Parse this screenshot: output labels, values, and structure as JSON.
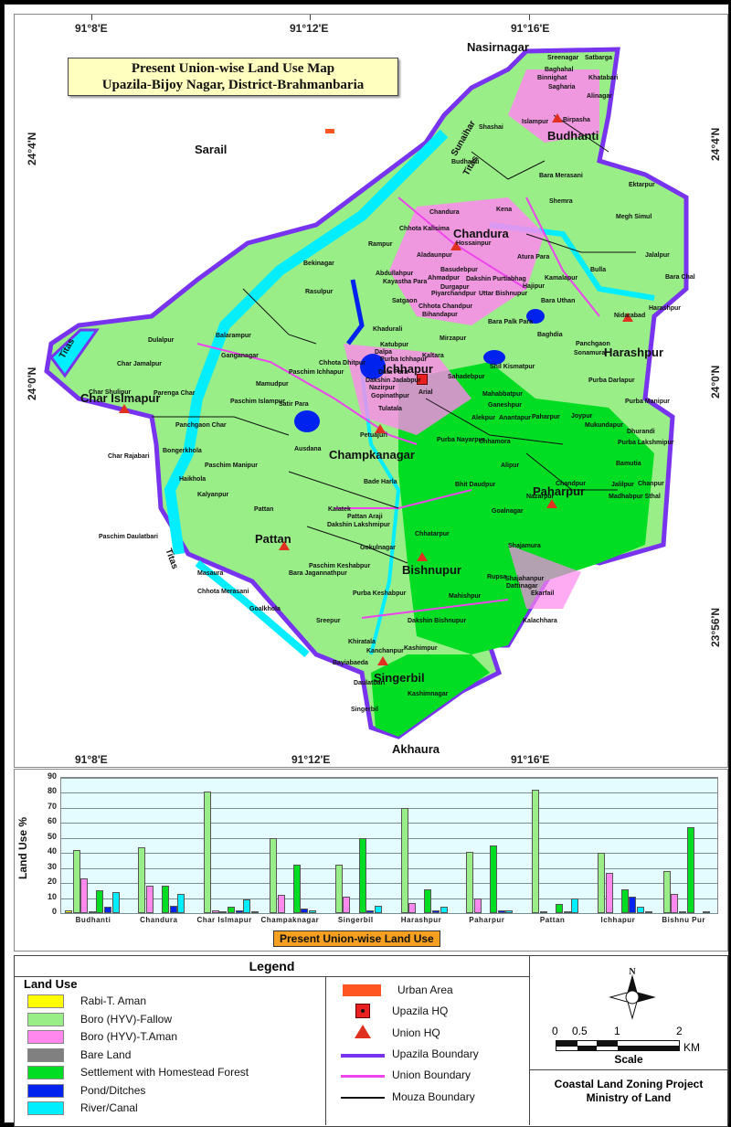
{
  "map": {
    "title_line1": "Present Union-wise Land Use  Map",
    "title_line2": "Upazila-Bijoy Nagar, District-Brahmanbaria",
    "coords": {
      "top": [
        "91°8'E",
        "91°12'E",
        "91°16'E"
      ],
      "bottom": [
        "91°8'E",
        "91°12'E",
        "91°16'E"
      ],
      "left": [
        "24°4'N",
        "24°0'N",
        "23°56'N"
      ],
      "right": [
        "24°4'N",
        "24°0'N",
        "23°56'N"
      ]
    },
    "neighbors": {
      "north": "Nasirnagar",
      "west": "Sarail",
      "south": "Akhaura"
    },
    "rivers": [
      "Titas",
      "Sunaihar",
      "Titas",
      "Titas"
    ],
    "unions": [
      "Budhanti",
      "Chandura",
      "Char Islmapur",
      "Ichhapur",
      "Harashpur",
      "Champkanagar",
      "Paharpur",
      "Pattan",
      "Bishnupur",
      "Singerbil"
    ],
    "mouzas": [
      "Sreenagar",
      "Satbarga",
      "Baghahal",
      "Binnighat",
      "Khatabari",
      "Sagharia",
      "Alinagar",
      "Islampur",
      "Birpasha",
      "Shashai",
      "Budhanti",
      "Bara Merasani",
      "Ektarpur",
      "Shemra",
      "Kena",
      "Megh Simul",
      "Chandura",
      "Chhota Kalisima",
      "Hossainpur",
      "Rampur",
      "Aladaunpur",
      "Bekinagar",
      "Abdullahpur",
      "Kayastha Para",
      "Basudebpur",
      "Ahmadpur",
      "Dakshin Purtiabhag",
      "Durgapur",
      "Atura Para",
      "Jalalpur",
      "Bulla",
      "Kamalapur",
      "Hajipur",
      "Bara Chal",
      "Rasulpur",
      "Satgaon",
      "Piyarchandpur",
      "Uttar Bishnupur",
      "Chhota Chandpur",
      "Bihandapur",
      "Bara Uthan",
      "Nidarabad",
      "Harashpur",
      "Bara Palk Para",
      "Khadurali",
      "Baghdia",
      "Panchgaon",
      "Sonamura",
      "Balarampur",
      "Mirzapur",
      "Ganganagar",
      "Katubpur",
      "Dalpa",
      "Purba Ichhapur",
      "Kaltara",
      "Chhota Dhitpur",
      "Shil Kismatpur",
      "Dulalpur",
      "Char Jamalpur",
      "Paschim Ichhapur",
      "Data Para",
      "Sahadebpur",
      "Purba Darlapur",
      "Mamudpur",
      "Dakshin Jadabpur",
      "Nazirpur",
      "Arial",
      "Mahabbatpur",
      "Char Shulipur",
      "Parenga Char",
      "Gopinathpur",
      "Ganeshpur",
      "Purba Manipur",
      "Satir Para",
      "Paschim Islampur",
      "Tulatala",
      "Alekpur",
      "Anantapur",
      "Paharpur",
      "Joypur",
      "Mukundapur",
      "Panchgaon Char",
      "Petuajuri",
      "Purba Nayarpur",
      "Chhamora",
      "Dhurandi",
      "Ausdana",
      "Purba Lakshmipur",
      "Char Rajabari",
      "Bongerkhola",
      "Alipur",
      "Bamutia",
      "Paschim Manipur",
      "Bhit Daudpur",
      "Haikhola",
      "Bade Harla",
      "Chandpur",
      "Jalilpur",
      "Chanpur",
      "Kalyanpur",
      "Madhabpur Sthal",
      "Nazarpur",
      "Pattan",
      "Kalatek",
      "Pattan Araji",
      "Goalnagar",
      "Dakshin Lakshmipur",
      "Chhatarpur",
      "Paschim Daulatbari",
      "Shajamura",
      "Gokulnagar",
      "Masaura",
      "Paschim Keshabpur",
      "Bara Jagannathpur",
      "Rupsa",
      "Shajahanpur",
      "Dattinagar",
      "Mahishpur",
      "Purba Keshabpur",
      "Ekarfail",
      "Chhota Merasani",
      "Goalkhola",
      "Dakshin Bishnupur",
      "Kalachhara",
      "Sreepur",
      "Kashimpur",
      "Khiratala",
      "Kanchanpur",
      "Bayiabaeda",
      "Daulatbari",
      "Kashimnagar",
      "Singerbil"
    ]
  },
  "chart_data": {
    "type": "bar",
    "title": "Present Union-wise Land Use",
    "xlabel": "",
    "ylabel": "Land Use %",
    "ylim": [
      0,
      90
    ],
    "yticks": [
      0,
      10,
      20,
      30,
      40,
      50,
      60,
      70,
      80,
      90
    ],
    "grid": true,
    "legend_position": "below (separate legend panel)",
    "categories": [
      "Budhanti",
      "Chandura",
      "Char Islmapur",
      "Champaknagar",
      "Singerbil",
      "Harashpur",
      "Paharpur",
      "Pattan",
      "Ichhapur",
      "Bishnu Pur"
    ],
    "series": [
      {
        "name": "Rabi-T. Aman",
        "color": "#ffff00",
        "values": [
          2,
          0,
          0,
          0,
          0,
          0,
          0,
          0,
          0,
          0
        ]
      },
      {
        "name": "Boro (HYV)-Fallow",
        "color": "#99ee88",
        "values": [
          42,
          44,
          81,
          50,
          32,
          70,
          41,
          82,
          40,
          28
        ]
      },
      {
        "name": "Boro (HYV)-T.Aman",
        "color": "#ff88ee",
        "values": [
          23,
          18,
          2,
          12,
          11,
          7,
          10,
          1,
          27,
          13
        ]
      },
      {
        "name": "Bare Land",
        "color": "#808080",
        "values": [
          1,
          0,
          1,
          0,
          0,
          0,
          0,
          0,
          0,
          1
        ]
      },
      {
        "name": "Settlement with Homestead Forest",
        "color": "#00dd22",
        "values": [
          15,
          18,
          4,
          32,
          50,
          16,
          45,
          6,
          16,
          57
        ]
      },
      {
        "name": "Pond/Ditches",
        "color": "#0022ee",
        "values": [
          4,
          5,
          2,
          3,
          2,
          2,
          2,
          1,
          11,
          0
        ]
      },
      {
        "name": "River/Canal",
        "color": "#00eeff",
        "values": [
          14,
          13,
          9,
          2,
          5,
          4,
          2,
          10,
          4,
          1
        ]
      },
      {
        "name": "Urban Area",
        "color": "#cc7744",
        "values": [
          0,
          0,
          1,
          0,
          0,
          0,
          0,
          0,
          1,
          0
        ]
      }
    ]
  },
  "legend": {
    "title": "Legend",
    "land_use_title": "Land Use",
    "land_use_items": [
      {
        "label": "Rabi-T. Aman",
        "color": "#ffff00"
      },
      {
        "label": "Boro (HYV)-Fallow",
        "color": "#99ee88"
      },
      {
        "label": "Boro (HYV)-T.Aman",
        "color": "#ff88ee"
      },
      {
        "label": "Bare Land",
        "color": "#808080"
      },
      {
        "label": "Settlement with Homestead Forest",
        "color": "#00dd22"
      },
      {
        "label": "Pond/Ditches",
        "color": "#0022ee"
      },
      {
        "label": "River/Canal",
        "color": "#00eeff"
      }
    ],
    "symbols": [
      {
        "label": "Urban Area",
        "type": "fill",
        "color": "#ff5522"
      },
      {
        "label": "Upazila HQ",
        "type": "square-dot",
        "color": "#e82020"
      },
      {
        "label": "Union HQ",
        "type": "triangle-dot",
        "color": "#e03020"
      },
      {
        "label": "Upazila Boundary",
        "type": "line",
        "color": "#7733ee"
      },
      {
        "label": "Union Boundary",
        "type": "line",
        "color": "#ee44ee"
      },
      {
        "label": "Mouza Boundary",
        "type": "line",
        "color": "#111111"
      }
    ],
    "north_label": "N",
    "scale_ticks": [
      "0",
      "0.5",
      "1",
      "2"
    ],
    "scale_unit": "KM",
    "scale_title": "Scale",
    "credit_line1": "Coastal Land Zoning Project",
    "credit_line2": "Ministry of Land"
  }
}
